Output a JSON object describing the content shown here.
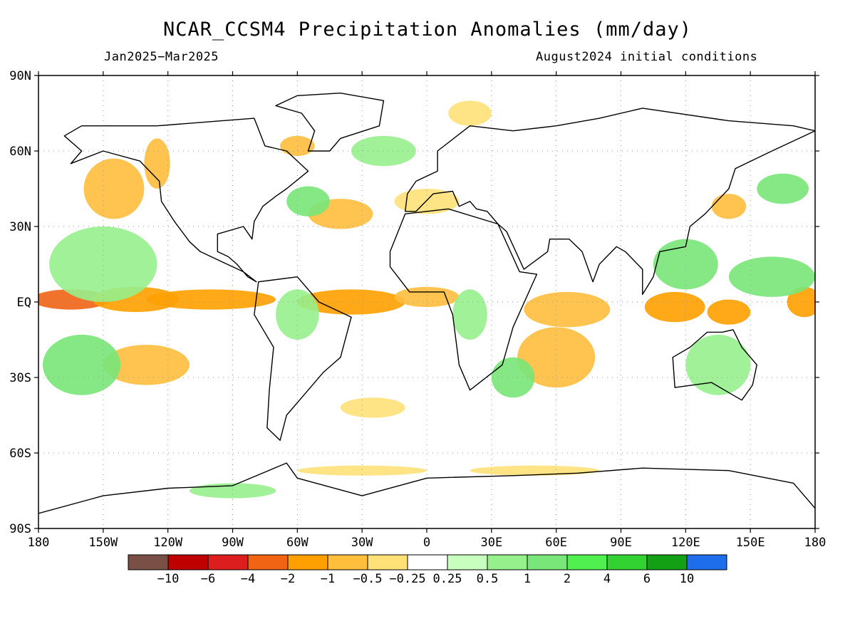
{
  "title": "NCAR_CCSM4 Precipitation Anomalies (mm/day)",
  "subtitle_left": "Jan2025−Mar2025",
  "subtitle_right": "August2024 initial conditions",
  "map": {
    "projection": "equirectangular",
    "lon_range": [
      -180,
      180
    ],
    "lat_range": [
      -90,
      90
    ],
    "grid": true,
    "lat_ticks": [
      {
        "lat": 90,
        "label": "90N"
      },
      {
        "lat": 60,
        "label": "60N"
      },
      {
        "lat": 30,
        "label": "30N"
      },
      {
        "lat": 0,
        "label": "EQ"
      },
      {
        "lat": -30,
        "label": "30S"
      },
      {
        "lat": -60,
        "label": "60S"
      },
      {
        "lat": -90,
        "label": "90S"
      }
    ],
    "lon_ticks": [
      {
        "lon": -180,
        "label": "180"
      },
      {
        "lon": -150,
        "label": "150W"
      },
      {
        "lon": -120,
        "label": "120W"
      },
      {
        "lon": -90,
        "label": "90W"
      },
      {
        "lon": -60,
        "label": "60W"
      },
      {
        "lon": -30,
        "label": "30W"
      },
      {
        "lon": 0,
        "label": "0"
      },
      {
        "lon": 30,
        "label": "30E"
      },
      {
        "lon": 60,
        "label": "60E"
      },
      {
        "lon": 90,
        "label": "90E"
      },
      {
        "lon": 120,
        "label": "120E"
      },
      {
        "lon": 150,
        "label": "150E"
      },
      {
        "lon": 180,
        "label": "180"
      }
    ]
  },
  "colorbar": {
    "colors": [
      "#7a5046",
      "#be0000",
      "#dc1e1e",
      "#f06414",
      "#ffa000",
      "#ffbe3c",
      "#ffe178",
      "#ffffff",
      "#c8ffbe",
      "#96f08c",
      "#78e678",
      "#50f050",
      "#32d232",
      "#14a014",
      "#1e6eeb"
    ],
    "labels": [
      "−10",
      "−6",
      "−4",
      "−2",
      "−1",
      "−0.5",
      "−0.25",
      "0.25",
      "0.5",
      "1",
      "2",
      "4",
      "6",
      "10"
    ]
  },
  "anomaly_regions": [
    {
      "lon": -165,
      "lat": 1,
      "rx": 18,
      "ry": 4,
      "level": -4
    },
    {
      "lon": -135,
      "lat": 1,
      "rx": 20,
      "ry": 5,
      "level": -2
    },
    {
      "lon": -100,
      "lat": 1,
      "rx": 30,
      "ry": 4,
      "level": -2
    },
    {
      "lon": -35,
      "lat": 0,
      "rx": 25,
      "ry": 5,
      "level": -2
    },
    {
      "lon": 0,
      "lat": 2,
      "rx": 15,
      "ry": 4,
      "level": -1
    },
    {
      "lon": 175,
      "lat": 0,
      "rx": 8,
      "ry": 6,
      "level": -2
    },
    {
      "lon": 115,
      "lat": -2,
      "rx": 14,
      "ry": 6,
      "level": -2
    },
    {
      "lon": 140,
      "lat": -4,
      "rx": 10,
      "ry": 5,
      "level": -2
    },
    {
      "lon": 60,
      "lat": -22,
      "rx": 18,
      "ry": 12,
      "level": -1
    },
    {
      "lon": 65,
      "lat": -3,
      "rx": 20,
      "ry": 7,
      "level": -1
    },
    {
      "lon": -145,
      "lat": 45,
      "rx": 14,
      "ry": 12,
      "level": -1
    },
    {
      "lon": -125,
      "lat": 55,
      "rx": 6,
      "ry": 10,
      "level": -1
    },
    {
      "lon": -130,
      "lat": -25,
      "rx": 20,
      "ry": 8,
      "level": -1
    },
    {
      "lon": -60,
      "lat": 62,
      "rx": 8,
      "ry": 4,
      "level": -1
    },
    {
      "lon": -40,
      "lat": 35,
      "rx": 15,
      "ry": 6,
      "level": -1
    },
    {
      "lon": -25,
      "lat": -42,
      "rx": 15,
      "ry": 4,
      "level": -0.5
    },
    {
      "lon": -30,
      "lat": -67,
      "rx": 30,
      "ry": 2,
      "level": -0.5
    },
    {
      "lon": 50,
      "lat": -67,
      "rx": 30,
      "ry": 2,
      "level": -0.5
    },
    {
      "lon": 140,
      "lat": 38,
      "rx": 8,
      "ry": 5,
      "level": -1
    },
    {
      "lon": 20,
      "lat": 75,
      "rx": 10,
      "ry": 5,
      "level": -0.5
    },
    {
      "lon": 0,
      "lat": 40,
      "rx": 15,
      "ry": 5,
      "level": -0.5
    },
    {
      "lon": -150,
      "lat": 15,
      "rx": 25,
      "ry": 15,
      "level": 0.5
    },
    {
      "lon": -160,
      "lat": -25,
      "rx": 18,
      "ry": 12,
      "level": 1
    },
    {
      "lon": 120,
      "lat": 15,
      "rx": 15,
      "ry": 10,
      "level": 1
    },
    {
      "lon": 160,
      "lat": 10,
      "rx": 20,
      "ry": 8,
      "level": 1
    },
    {
      "lon": 135,
      "lat": -25,
      "rx": 15,
      "ry": 12,
      "level": 0.5
    },
    {
      "lon": -55,
      "lat": 40,
      "rx": 10,
      "ry": 6,
      "level": 1
    },
    {
      "lon": -20,
      "lat": 60,
      "rx": 15,
      "ry": 6,
      "level": 0.5
    },
    {
      "lon": 40,
      "lat": -30,
      "rx": 10,
      "ry": 8,
      "level": 1
    },
    {
      "lon": 165,
      "lat": 45,
      "rx": 12,
      "ry": 6,
      "level": 1
    },
    {
      "lon": -60,
      "lat": -5,
      "rx": 10,
      "ry": 10,
      "level": 0.5
    },
    {
      "lon": -90,
      "lat": -75,
      "rx": 20,
      "ry": 3,
      "level": 0.5
    },
    {
      "lon": 20,
      "lat": -5,
      "rx": 8,
      "ry": 10,
      "level": 0.5
    }
  ],
  "land_outlines": [
    {
      "name": "North America",
      "points": [
        [
          -168,
          66
        ],
        [
          -160,
          70
        ],
        [
          -140,
          70
        ],
        [
          -125,
          70
        ],
        [
          -95,
          72
        ],
        [
          -80,
          73
        ],
        [
          -75,
          62
        ],
        [
          -65,
          60
        ],
        [
          -55,
          52
        ],
        [
          -65,
          45
        ],
        [
          -70,
          42
        ],
        [
          -76,
          38
        ],
        [
          -80,
          32
        ],
        [
          -81,
          25
        ],
        [
          -85,
          30
        ],
        [
          -97,
          27
        ],
        [
          -97,
          20
        ],
        [
          -92,
          18
        ],
        [
          -88,
          15
        ],
        [
          -83,
          10
        ],
        [
          -79,
          8
        ],
        [
          -85,
          12
        ],
        [
          -95,
          16
        ],
        [
          -105,
          20
        ],
        [
          -110,
          24
        ],
        [
          -117,
          32
        ],
        [
          -123,
          40
        ],
        [
          -124,
          48
        ],
        [
          -133,
          56
        ],
        [
          -150,
          60
        ],
        [
          -165,
          55
        ],
        [
          -160,
          60
        ],
        [
          -168,
          66
        ]
      ]
    },
    {
      "name": "Greenland",
      "points": [
        [
          -55,
          60
        ],
        [
          -45,
          60
        ],
        [
          -40,
          65
        ],
        [
          -22,
          70
        ],
        [
          -20,
          80
        ],
        [
          -40,
          83
        ],
        [
          -60,
          82
        ],
        [
          -70,
          78
        ],
        [
          -58,
          75
        ],
        [
          -52,
          68
        ],
        [
          -55,
          60
        ]
      ]
    },
    {
      "name": "South America",
      "points": [
        [
          -78,
          8
        ],
        [
          -60,
          10
        ],
        [
          -50,
          0
        ],
        [
          -35,
          -6
        ],
        [
          -40,
          -22
        ],
        [
          -48,
          -28
        ],
        [
          -58,
          -38
        ],
        [
          -65,
          -45
        ],
        [
          -68,
          -55
        ],
        [
          -74,
          -50
        ],
        [
          -73,
          -35
        ],
        [
          -71,
          -18
        ],
        [
          -80,
          -5
        ],
        [
          -78,
          8
        ]
      ]
    },
    {
      "name": "Africa",
      "points": [
        [
          -17,
          20
        ],
        [
          -10,
          35
        ],
        [
          10,
          37
        ],
        [
          33,
          31
        ],
        [
          43,
          12
        ],
        [
          51,
          11
        ],
        [
          40,
          -10
        ],
        [
          35,
          -25
        ],
        [
          20,
          -35
        ],
        [
          15,
          -25
        ],
        [
          12,
          -5
        ],
        [
          8,
          4
        ],
        [
          -8,
          4
        ],
        [
          -17,
          14
        ],
        [
          -17,
          20
        ]
      ]
    },
    {
      "name": "Eurasia",
      "points": [
        [
          -10,
          36
        ],
        [
          -9,
          43
        ],
        [
          -5,
          48
        ],
        [
          5,
          52
        ],
        [
          5,
          60
        ],
        [
          20,
          70
        ],
        [
          40,
          68
        ],
        [
          60,
          70
        ],
        [
          80,
          73
        ],
        [
          100,
          77
        ],
        [
          140,
          72
        ],
        [
          170,
          70
        ],
        [
          180,
          68
        ],
        [
          160,
          60
        ],
        [
          143,
          53
        ],
        [
          140,
          45
        ],
        [
          129,
          35
        ],
        [
          122,
          30
        ],
        [
          120,
          22
        ],
        [
          108,
          20
        ],
        [
          105,
          10
        ],
        [
          100,
          3
        ],
        [
          100,
          13
        ],
        [
          92,
          20
        ],
        [
          88,
          22
        ],
        [
          80,
          15
        ],
        [
          77,
          8
        ],
        [
          72,
          20
        ],
        [
          66,
          25
        ],
        [
          57,
          25
        ],
        [
          56,
          20
        ],
        [
          45,
          13
        ],
        [
          37,
          28
        ],
        [
          33,
          31
        ],
        [
          28,
          36
        ],
        [
          23,
          37
        ],
        [
          20,
          40
        ],
        [
          15,
          38
        ],
        [
          12,
          44
        ],
        [
          3,
          43
        ],
        [
          -5,
          36
        ],
        [
          -10,
          36
        ]
      ]
    },
    {
      "name": "Australia",
      "points": [
        [
          114,
          -22
        ],
        [
          122,
          -18
        ],
        [
          130,
          -12
        ],
        [
          137,
          -12
        ],
        [
          142,
          -11
        ],
        [
          146,
          -18
        ],
        [
          153,
          -25
        ],
        [
          151,
          -33
        ],
        [
          146,
          -39
        ],
        [
          138,
          -35
        ],
        [
          132,
          -32
        ],
        [
          115,
          -34
        ],
        [
          114,
          -22
        ]
      ]
    },
    {
      "name": "Antarctica",
      "points": [
        [
          -180,
          -84
        ],
        [
          -150,
          -77
        ],
        [
          -120,
          -74
        ],
        [
          -90,
          -73
        ],
        [
          -65,
          -64
        ],
        [
          -60,
          -70
        ],
        [
          -30,
          -77
        ],
        [
          0,
          -70
        ],
        [
          40,
          -69
        ],
        [
          70,
          -68
        ],
        [
          100,
          -66
        ],
        [
          140,
          -67
        ],
        [
          170,
          -72
        ],
        [
          180,
          -82
        ]
      ]
    }
  ]
}
